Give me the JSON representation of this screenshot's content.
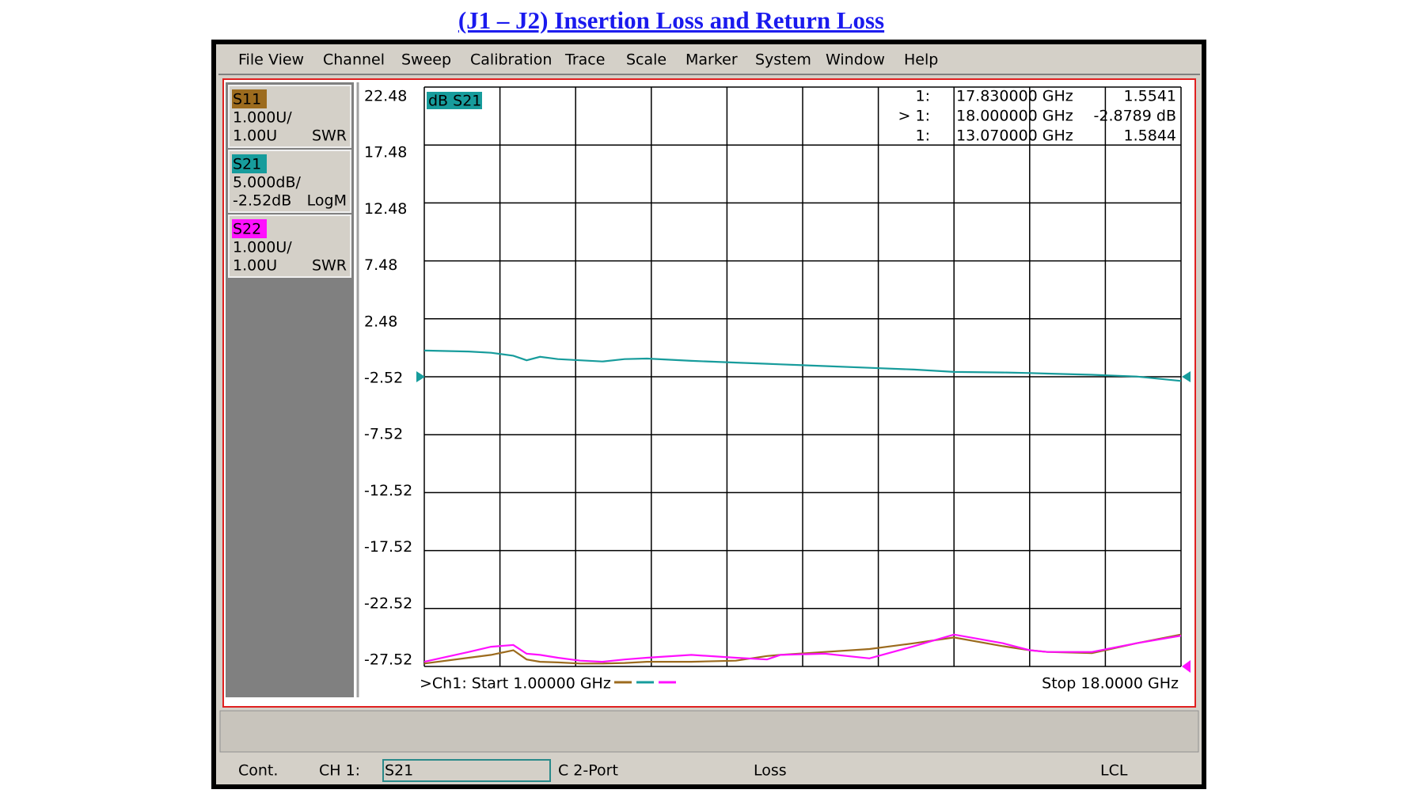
{
  "header": {
    "title": "(J1 – J2) Insertion Loss and Return Loss"
  },
  "menu": [
    "File",
    "View",
    "Channel",
    "Sweep",
    "Calibration",
    "Trace",
    "Scale",
    "Marker",
    "System",
    "Window",
    "Help"
  ],
  "traces": [
    {
      "scale": "1.000U/",
      "ref": "1.00U",
      "format": "SWR"
    },
    {
      "scale": "5.000dB/",
      "ref": "-2.52dB",
      "format": "LogM"
    },
    {
      "scale": "1.000U/",
      "ref": "1.00U",
      "format": "SWR"
    }
  ],
  "plot_label": "dB S21",
  "markers": [
    {
      "id": "1:",
      "freq": "17.830000 GHz",
      "value": "1.5541"
    },
    {
      "id": "> 1:",
      "freq": "18.000000 GHz",
      "value": "-2.8789 dB"
    },
    {
      "id": "1:",
      "freq": "13.070000 GHz",
      "value": "1.5844"
    }
  ],
  "start": ">Ch1: Start  1.00000 GHz",
  "stop": "Stop  18.0000 GHz",
  "status": {
    "mode": "Cont.",
    "channel": "CH 1:",
    "param": "S21",
    "cal": "C  2-Port",
    "meas": "Loss",
    "remote": "LCL"
  },
  "chart_data": {
    "type": "line",
    "x": [
      1,
      2,
      2.5,
      3,
      3.3,
      3.6,
      4,
      4.5,
      5,
      5.5,
      6,
      7,
      8,
      8.7,
      9,
      10,
      11,
      12,
      12.9,
      14,
      14.6,
      15,
      16,
      17,
      18
    ],
    "xlim": [
      1,
      18
    ],
    "ylim": [
      -27.52,
      22.48
    ],
    "yticks": [
      22.48,
      17.48,
      12.48,
      7.48,
      2.48,
      -2.52,
      -7.52,
      -12.52,
      -17.52,
      -22.52,
      -27.52
    ],
    "y2lim": [
      1,
      11
    ],
    "grid": true,
    "series": [
      {
        "name": "S11",
        "color": "#9c6b1e",
        "axis": "y2",
        "values": [
          1.05,
          1.15,
          1.2,
          1.28,
          1.12,
          1.08,
          1.07,
          1.05,
          1.05,
          1.06,
          1.08,
          1.08,
          1.1,
          1.18,
          1.2,
          1.25,
          1.3,
          1.4,
          1.5,
          1.35,
          1.28,
          1.25,
          1.23,
          1.4,
          1.55
        ]
      },
      {
        "name": "S21",
        "color": "#179c9c",
        "values": [
          -0.26,
          -0.34,
          -0.45,
          -0.7,
          -1.1,
          -0.8,
          -1.0,
          -1.1,
          -1.2,
          -1.0,
          -0.95,
          -1.15,
          -1.3,
          -1.4,
          -1.45,
          -1.6,
          -1.75,
          -1.9,
          -2.1,
          -2.15,
          -2.2,
          -2.25,
          -2.35,
          -2.5,
          -2.88
        ]
      },
      {
        "name": "S22",
        "color": "#ff10ff",
        "axis": "y2",
        "values": [
          1.08,
          1.25,
          1.34,
          1.37,
          1.22,
          1.2,
          1.15,
          1.1,
          1.08,
          1.12,
          1.15,
          1.2,
          1.15,
          1.12,
          1.2,
          1.22,
          1.14,
          1.35,
          1.55,
          1.4,
          1.28,
          1.25,
          1.25,
          1.4,
          1.53
        ]
      }
    ]
  }
}
